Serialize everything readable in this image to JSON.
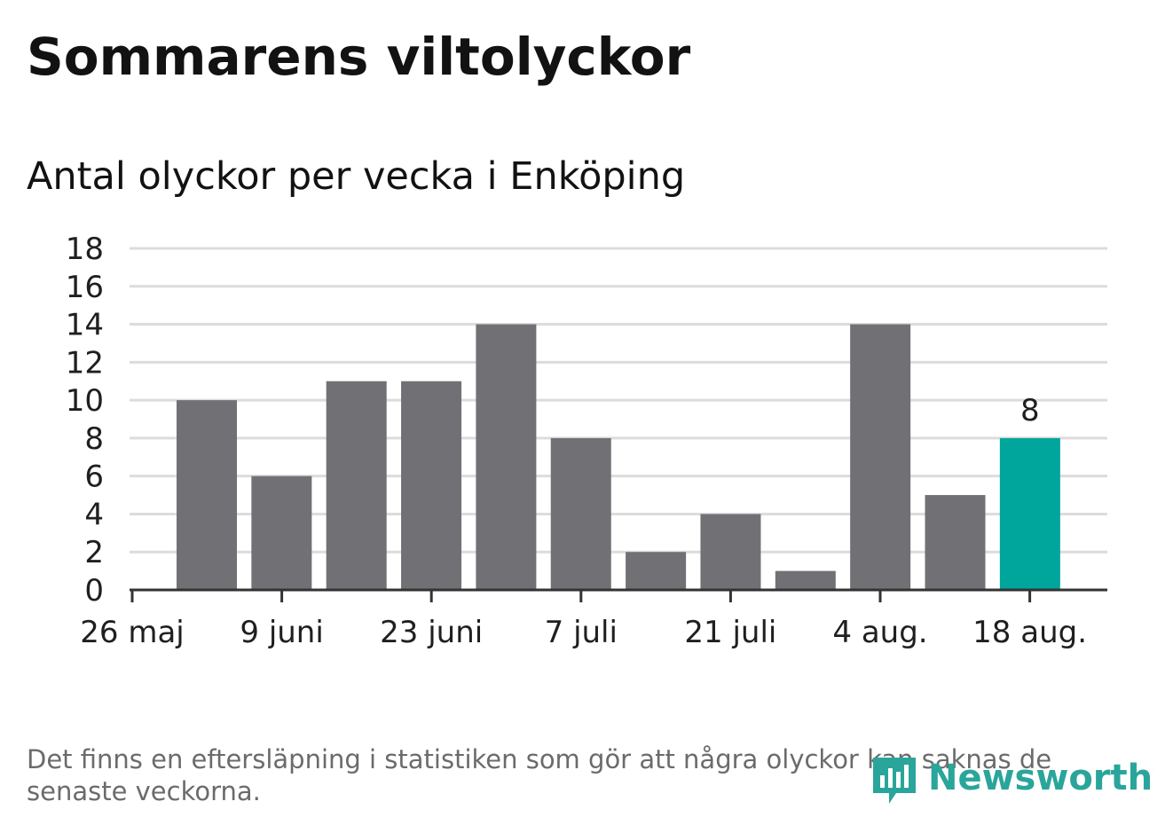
{
  "chart_data": {
    "type": "bar",
    "title": "Sommarens viltolyckor",
    "subtitle": "Antal olyckor per vecka i Enköping",
    "xlabel": "",
    "ylabel": "",
    "ylim": [
      0,
      18
    ],
    "y_ticks": [
      0,
      2,
      4,
      6,
      8,
      10,
      12,
      14,
      16,
      18
    ],
    "x_tick_labels": [
      "26 maj",
      "9 juni",
      "23 juni",
      "7 juli",
      "21 juli",
      "4 aug.",
      "18 aug."
    ],
    "values": [
      10,
      6,
      11,
      11,
      14,
      8,
      2,
      4,
      1,
      14,
      5,
      8
    ],
    "highlight_index": 11,
    "highlight_label": "8",
    "grid": true,
    "legend": "none",
    "colors": {
      "bar": "#707075",
      "highlight": "#00a59b",
      "grid": "#dcdcdc",
      "axis": "#333333"
    }
  },
  "note": "Det finns en eftersläpning i statistiken som gör att några olyckor kan saknas de senaste veckorna.",
  "logo": {
    "text": "Newsworthy",
    "icon": "newsworthy-bars-icon",
    "color": "#2aa59b"
  }
}
